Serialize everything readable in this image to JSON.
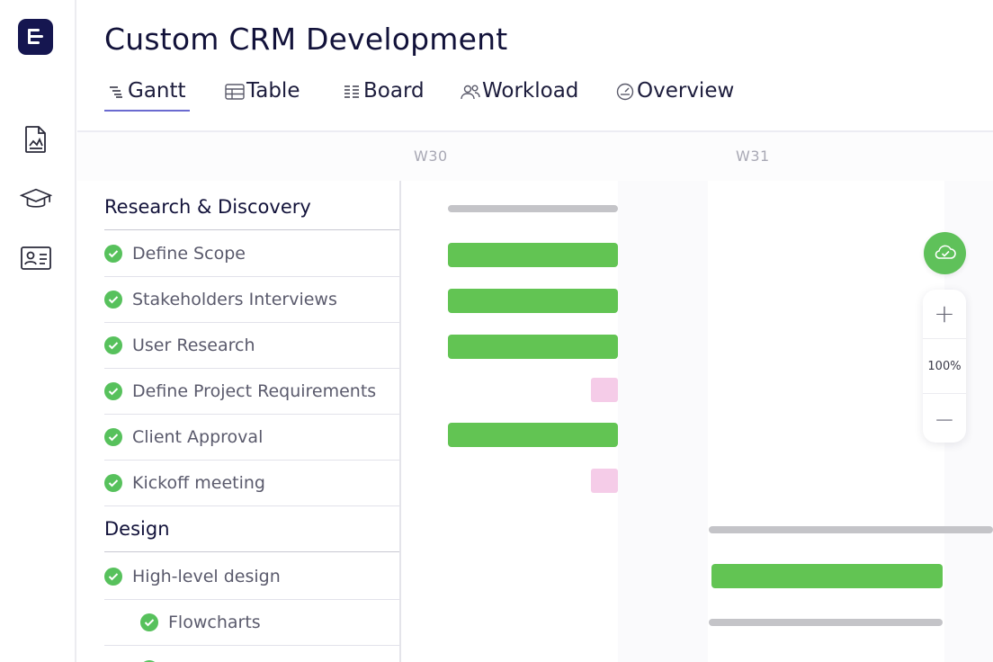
{
  "project": {
    "title": "Custom CRM Development"
  },
  "rail": {
    "items": [
      {
        "icon": "document-chart-icon"
      },
      {
        "icon": "graduation-cap-icon"
      },
      {
        "icon": "contact-card-icon"
      }
    ]
  },
  "tabs": [
    {
      "label": "Gantt",
      "icon": "gantt-icon",
      "active": true
    },
    {
      "label": "Table",
      "icon": "table-icon",
      "active": false
    },
    {
      "label": "Board",
      "icon": "board-icon",
      "active": false
    },
    {
      "label": "Workload",
      "icon": "users-icon",
      "active": false
    },
    {
      "label": "Overview",
      "icon": "gauge-icon",
      "active": false
    }
  ],
  "timeline": {
    "weeks": [
      "W30",
      "W31"
    ]
  },
  "groups": [
    {
      "name": "Research & Discovery",
      "tasks": [
        {
          "name": "Define Scope",
          "done": true
        },
        {
          "name": "Stakeholders Interviews",
          "done": true
        },
        {
          "name": "User Research",
          "done": true
        },
        {
          "name": "Define Project Requirements",
          "done": true
        },
        {
          "name": "Client Approval",
          "done": true
        },
        {
          "name": "Kickoff meeting",
          "done": true
        }
      ]
    },
    {
      "name": "Design",
      "tasks": [
        {
          "name": "High-level design",
          "done": true
        },
        {
          "name": "Flowcharts",
          "done": true
        }
      ]
    }
  ],
  "zoom": {
    "level": "100%",
    "in_label": "+",
    "out_label": "−"
  },
  "colors": {
    "brand": "#151650",
    "done_green": "#57c15c",
    "bar_green": "#62c453",
    "milestone_pink": "#f5cce8",
    "summary_gray": "#c4c4c8",
    "tab_underline": "#6a6ad0"
  }
}
